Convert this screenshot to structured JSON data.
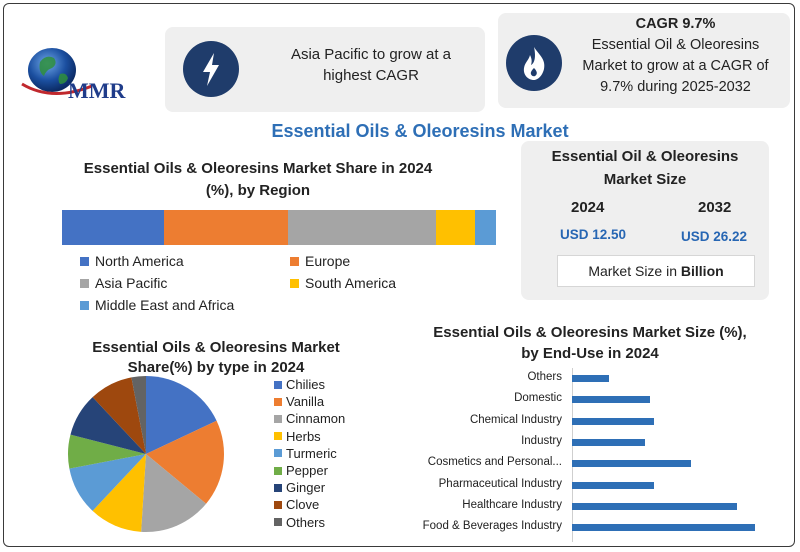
{
  "brand": {
    "logo_text": "MMR"
  },
  "callouts": {
    "region_growth": "Asia Pacific to grow at a highest CAGR",
    "cagr_title": "CAGR 9.7%",
    "cagr_text": "Essential Oil & Oleoresins Market to grow at a CAGR of 9.7% during 2025-2032"
  },
  "main_title": "Essential Oils & Oleoresins Market",
  "market_size": {
    "title": "Essential Oil & Oleoresins Market Size",
    "year_a": "2024",
    "year_b": "2032",
    "value_a": "USD 12.50",
    "value_b": "USD 26.22",
    "unit_prefix": "Market Size in ",
    "unit_bold": "Billion"
  },
  "colors": {
    "navy": "#1f3c6b",
    "title_blue": "#2e6fb6",
    "value_blue": "#2766b3"
  },
  "icons": {
    "callout_left": "lightning-icon",
    "callout_right": "flame-icon",
    "logo": "globe-icon"
  },
  "chart_data": [
    {
      "type": "bar",
      "title": "Essential Oils & Oleoresins  Market Share in 2024 (%), by Region",
      "orientation": "stacked-horizontal",
      "series": [
        {
          "name": "North America",
          "value": 24,
          "color": "#4472c4"
        },
        {
          "name": "Europe",
          "value": 29,
          "color": "#ed7d31"
        },
        {
          "name": "Asia Pacific",
          "value": 35,
          "color": "#a5a5a5"
        },
        {
          "name": "South America",
          "value": 9,
          "color": "#ffc000"
        },
        {
          "name": "Middle East and Africa",
          "value": 5,
          "color": "#5b9bd5"
        }
      ],
      "legend": "bottom"
    },
    {
      "type": "pie",
      "title": "Essential Oils & Oleoresins  Market Share(%) by  type in 2024",
      "slices": [
        {
          "name": "Chilies",
          "value": 18,
          "color": "#4472c4"
        },
        {
          "name": "Vanilla",
          "value": 18,
          "color": "#ed7d31"
        },
        {
          "name": "Cinnamon",
          "value": 15,
          "color": "#a5a5a5"
        },
        {
          "name": "Herbs",
          "value": 11,
          "color": "#ffc000"
        },
        {
          "name": "Turmeric",
          "value": 10,
          "color": "#5b9bd5"
        },
        {
          "name": "Pepper",
          "value": 7,
          "color": "#70ad47"
        },
        {
          "name": "Ginger",
          "value": 9,
          "color": "#264478"
        },
        {
          "name": "Clove",
          "value": 9,
          "color": "#9e480e"
        },
        {
          "name": "Others",
          "value": 3,
          "color": "#636363"
        }
      ],
      "legend": "right"
    },
    {
      "type": "bar",
      "orientation": "horizontal",
      "title": "Essential Oils & Oleoresins Market Size (%), by End-Use in 2024",
      "categories": [
        "Others",
        "Domestic",
        "Chemical Industry",
        "Industry",
        "Cosmetics and Personal...",
        "Pharmaceutical Industry",
        "Healthcare Industry",
        "Food & Beverages Industry"
      ],
      "values": [
        4,
        8.5,
        9,
        8,
        13,
        9,
        18,
        20
      ],
      "color": "#2e6fb6"
    }
  ]
}
